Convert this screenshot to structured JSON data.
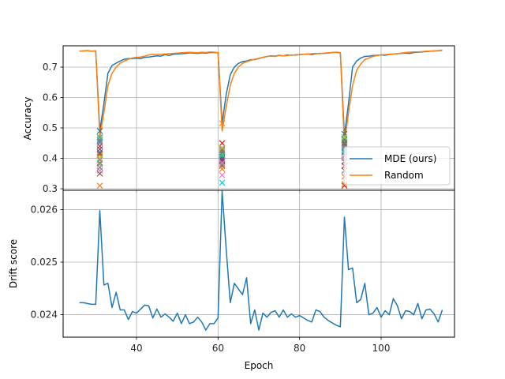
{
  "chart_data": [
    {
      "type": "line",
      "panel": "top",
      "xlabel": "",
      "ylabel": "Accuracy",
      "xlim": [
        22,
        118
      ],
      "ylim": [
        0.295,
        0.77
      ],
      "yticks": [
        0.3,
        0.4,
        0.5,
        0.6,
        0.7
      ],
      "ytick_labels": [
        "0.3",
        "0.4",
        "0.5",
        "0.6",
        "0.7"
      ],
      "grid": true,
      "legend_position": "lower-right",
      "series": [
        {
          "name": "MDE (ours)",
          "color": "#1f77b4",
          "x": [
            26,
            27,
            28,
            29,
            30,
            31,
            32,
            33,
            34,
            35,
            36,
            37,
            38,
            39,
            40,
            41,
            42,
            43,
            44,
            45,
            46,
            47,
            48,
            49,
            50,
            51,
            52,
            53,
            54,
            55,
            56,
            57,
            58,
            59,
            60,
            61,
            62,
            63,
            64,
            65,
            66,
            67,
            68,
            69,
            70,
            71,
            72,
            73,
            74,
            75,
            76,
            77,
            78,
            79,
            80,
            81,
            82,
            83,
            84,
            85,
            86,
            87,
            88,
            89,
            90,
            91,
            92,
            93,
            94,
            95,
            96,
            97,
            98,
            99,
            100,
            101,
            102,
            103,
            104,
            105,
            106,
            107,
            108,
            109,
            110,
            111,
            112,
            113,
            114,
            115
          ],
          "values": [
            0.752,
            0.753,
            0.754,
            0.752,
            0.753,
            0.49,
            0.58,
            0.68,
            0.705,
            0.713,
            0.72,
            0.726,
            0.728,
            0.728,
            0.729,
            0.728,
            0.732,
            0.733,
            0.735,
            0.737,
            0.736,
            0.741,
            0.738,
            0.742,
            0.743,
            0.744,
            0.745,
            0.747,
            0.746,
            0.745,
            0.747,
            0.746,
            0.748,
            0.748,
            0.747,
            0.515,
            0.61,
            0.675,
            0.7,
            0.712,
            0.718,
            0.72,
            0.724,
            0.725,
            0.728,
            0.732,
            0.735,
            0.737,
            0.736,
            0.739,
            0.737,
            0.74,
            0.739,
            0.74,
            0.741,
            0.742,
            0.743,
            0.741,
            0.744,
            0.745,
            0.745,
            0.746,
            0.748,
            0.749,
            0.747,
            0.475,
            0.58,
            0.7,
            0.72,
            0.73,
            0.735,
            0.736,
            0.738,
            0.739,
            0.74,
            0.739,
            0.741,
            0.743,
            0.744,
            0.745,
            0.746,
            0.745,
            0.748,
            0.749,
            0.75,
            0.751,
            0.752,
            0.753,
            0.754,
            0.755
          ]
        },
        {
          "name": "Random",
          "color": "#ff7f0e",
          "x": [
            26,
            27,
            28,
            29,
            30,
            31,
            32,
            33,
            34,
            35,
            36,
            37,
            38,
            39,
            40,
            41,
            42,
            43,
            44,
            45,
            46,
            47,
            48,
            49,
            50,
            51,
            52,
            53,
            54,
            55,
            56,
            57,
            58,
            59,
            60,
            61,
            62,
            63,
            64,
            65,
            66,
            67,
            68,
            69,
            70,
            71,
            72,
            73,
            74,
            75,
            76,
            77,
            78,
            79,
            80,
            81,
            82,
            83,
            84,
            85,
            86,
            87,
            88,
            89,
            90,
            91,
            92,
            93,
            94,
            95,
            96,
            97,
            98,
            99,
            100,
            101,
            102,
            103,
            104,
            105,
            106,
            107,
            108,
            109,
            110,
            111,
            112,
            113,
            114,
            115
          ],
          "values": [
            0.752,
            0.753,
            0.754,
            0.752,
            0.753,
            0.47,
            0.55,
            0.64,
            0.68,
            0.7,
            0.713,
            0.72,
            0.726,
            0.73,
            0.732,
            0.733,
            0.736,
            0.74,
            0.742,
            0.741,
            0.742,
            0.743,
            0.744,
            0.745,
            0.746,
            0.747,
            0.748,
            0.749,
            0.748,
            0.747,
            0.749,
            0.748,
            0.75,
            0.749,
            0.748,
            0.49,
            0.57,
            0.64,
            0.68,
            0.7,
            0.712,
            0.718,
            0.722,
            0.726,
            0.729,
            0.732,
            0.735,
            0.736,
            0.735,
            0.738,
            0.737,
            0.738,
            0.74,
            0.739,
            0.741,
            0.742,
            0.743,
            0.744,
            0.745,
            0.744,
            0.746,
            0.747,
            0.748,
            0.749,
            0.748,
            0.445,
            0.55,
            0.64,
            0.69,
            0.71,
            0.725,
            0.73,
            0.735,
            0.738,
            0.74,
            0.741,
            0.742,
            0.743,
            0.744,
            0.746,
            0.748,
            0.749,
            0.75,
            0.75,
            0.751,
            0.752,
            0.752,
            0.753,
            0.754,
            0.756
          ]
        }
      ],
      "scatter_markers": {
        "marker": "x",
        "colors": [
          "#1f77b4",
          "#ff7f0e",
          "#2ca02c",
          "#d62728",
          "#9467bd",
          "#8c564b",
          "#e377c2",
          "#7f7f7f",
          "#bcbd22",
          "#17becf"
        ],
        "points": [
          {
            "x": 31,
            "values": [
              0.49,
              0.31,
              0.47,
              0.43,
              0.395,
              0.35,
              0.36,
              0.37,
              0.465,
              0.45,
              0.42,
              0.41,
              0.385,
              0.44,
              0.455,
              0.415,
              0.38,
              0.46,
              0.4,
              0.47
            ]
          },
          {
            "x": 61,
            "values": [
              0.39,
              0.515,
              0.43,
              0.45,
              0.405,
              0.375,
              0.345,
              0.38,
              0.415,
              0.32,
              0.4,
              0.365,
              0.42,
              0.395,
              0.43,
              0.41,
              0.385,
              0.425,
              0.435,
              0.41
            ]
          },
          {
            "x": 91,
            "values": [
              0.48,
              0.34,
              0.445,
              0.31,
              0.41,
              0.39,
              0.455,
              0.36,
              0.43,
              0.465,
              0.42,
              0.315,
              0.46,
              0.375,
              0.44,
              0.45,
              0.4,
              0.435,
              0.47,
              0.425
            ]
          }
        ]
      }
    },
    {
      "type": "line",
      "panel": "bottom",
      "xlabel": "Epoch",
      "ylabel": "Drift score",
      "xlim": [
        22,
        118
      ],
      "ylim": [
        0.02357,
        0.02637
      ],
      "xticks": [
        40,
        60,
        80,
        100
      ],
      "xtick_labels": [
        "40",
        "60",
        "80",
        "100"
      ],
      "yticks": [
        0.024,
        0.025,
        0.026
      ],
      "ytick_labels": [
        "0.024",
        "0.025",
        "0.026"
      ],
      "grid": true,
      "series": [
        {
          "name": "MDE (ours)",
          "color": "#1f77b4",
          "x": [
            26,
            27,
            28,
            29,
            30,
            31,
            32,
            33,
            34,
            35,
            36,
            37,
            38,
            39,
            40,
            41,
            42,
            43,
            44,
            45,
            46,
            47,
            48,
            49,
            50,
            51,
            52,
            53,
            54,
            55,
            56,
            57,
            58,
            59,
            60,
            61,
            62,
            63,
            64,
            65,
            66,
            67,
            68,
            69,
            70,
            71,
            72,
            73,
            74,
            75,
            76,
            77,
            78,
            79,
            80,
            81,
            82,
            83,
            84,
            85,
            86,
            87,
            88,
            89,
            90,
            91,
            92,
            93,
            94,
            95,
            96,
            97,
            98,
            99,
            100,
            101,
            102,
            103,
            104,
            105,
            106,
            107,
            108,
            109,
            110,
            111,
            112,
            113,
            114,
            115
          ],
          "values": [
            0.024227,
            0.024227,
            0.024212,
            0.024197,
            0.024197,
            0.025982,
            0.024565,
            0.024596,
            0.024135,
            0.024426,
            0.024089,
            0.024089,
            0.023905,
            0.024059,
            0.024028,
            0.024105,
            0.024181,
            0.024166,
            0.023935,
            0.024105,
            0.023951,
            0.024013,
            0.023951,
            0.023874,
            0.024028,
            0.023828,
            0.023997,
            0.023828,
            0.023859,
            0.023951,
            0.023859,
            0.023705,
            0.023828,
            0.023828,
            0.023935,
            0.026351,
            0.025244,
            0.024227,
            0.024596,
            0.024489,
            0.024381,
            0.024703,
            0.023828,
            0.024089,
            0.023705,
            0.024028,
            0.023951,
            0.024043,
            0.024074,
            0.023951,
            0.024089,
            0.023951,
            0.024013,
            0.023951,
            0.023982,
            0.023935,
            0.023889,
            0.023859,
            0.024089,
            0.024059,
            0.023951,
            0.023889,
            0.023843,
            0.023797,
            0.023767,
            0.025859,
            0.024857,
            0.024888,
            0.024227,
            0.024289,
            0.024596,
            0.023997,
            0.024028,
            0.024135,
            0.023951,
            0.024074,
            0.023997,
            0.024305,
            0.024166,
            0.02392,
            0.024074,
            0.024059,
            0.023997,
            0.024213,
            0.02392,
            0.024089,
            0.024105,
            0.024013,
            0.023859,
            0.024089
          ]
        }
      ]
    }
  ]
}
